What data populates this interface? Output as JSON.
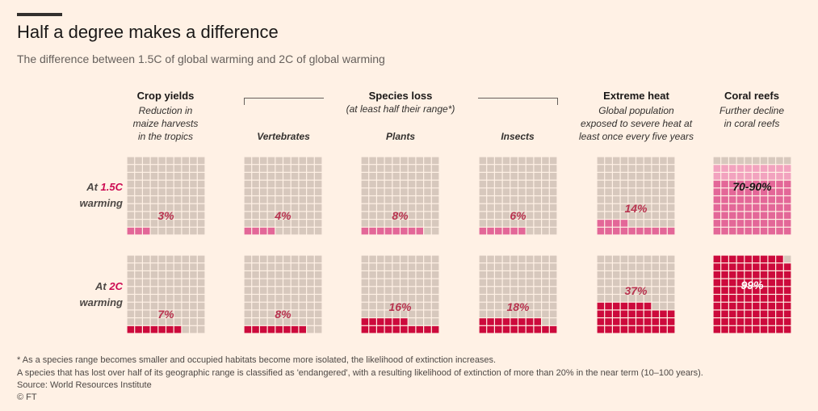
{
  "title": "Half a degree makes a difference",
  "subtitle": "The difference between 1.5C of global warming and 2C of global warming",
  "species_group": {
    "title": "Species loss",
    "note": "(at least half their range*)"
  },
  "columns": [
    {
      "title": "Crop yields",
      "desc": "Reduction in\nmaize harvests\nin the tropics",
      "sub": ""
    },
    {
      "title": "",
      "desc": "",
      "sub": "Vertebrates"
    },
    {
      "title": "",
      "desc": "",
      "sub": "Plants"
    },
    {
      "title": "",
      "desc": "",
      "sub": "Insects"
    },
    {
      "title": "Extreme heat",
      "desc": "Global population\nexposed to severe heat at\nleast once every five years",
      "sub": ""
    },
    {
      "title": "Coral reefs",
      "desc": "Further decline\nin coral reefs",
      "sub": ""
    }
  ],
  "rows": [
    {
      "prefix": "At",
      "highlight": "1.5C",
      "suffix": "warming"
    },
    {
      "prefix": "At",
      "highlight": "2C",
      "suffix": "warming"
    }
  ],
  "chart_data": {
    "type": "waffle",
    "grid_size": 100,
    "categories": [
      "Crop yields",
      "Vertebrates",
      "Plants",
      "Insects",
      "Extreme heat",
      "Coral reefs"
    ],
    "series": [
      {
        "name": "At 1.5C warming",
        "values": [
          3,
          4,
          8,
          6,
          14,
          80
        ],
        "labels": [
          "3%",
          "4%",
          "8%",
          "6%",
          "14%",
          "70-90%"
        ],
        "range": {
          "Coral reefs": [
            70,
            90
          ]
        }
      },
      {
        "name": "At 2C warming",
        "values": [
          7,
          8,
          16,
          18,
          37,
          99
        ],
        "labels": [
          "7%",
          "8%",
          "16%",
          "18%",
          "37%",
          "99%"
        ]
      }
    ],
    "colors": {
      "empty": "#d7c8bd",
      "row_1_5C": "#e36798",
      "row_1_5C_light": "#f2a3bf",
      "row_2C": "#cc0a3c",
      "label": "#b8334f",
      "on_fill": "#ffffff",
      "coral_label": "#1a1817"
    }
  },
  "footnotes": [
    "* As a species range becomes smaller and occupied habitats become more isolated, the likelihood of extinction increases.",
    "A species that has lost over half of its geographic range is classified as 'endangered', with a resulting likelihood of extinction of more than 20% in the near term (10–100 years).",
    "Source: World Resources Institute",
    "© FT"
  ]
}
